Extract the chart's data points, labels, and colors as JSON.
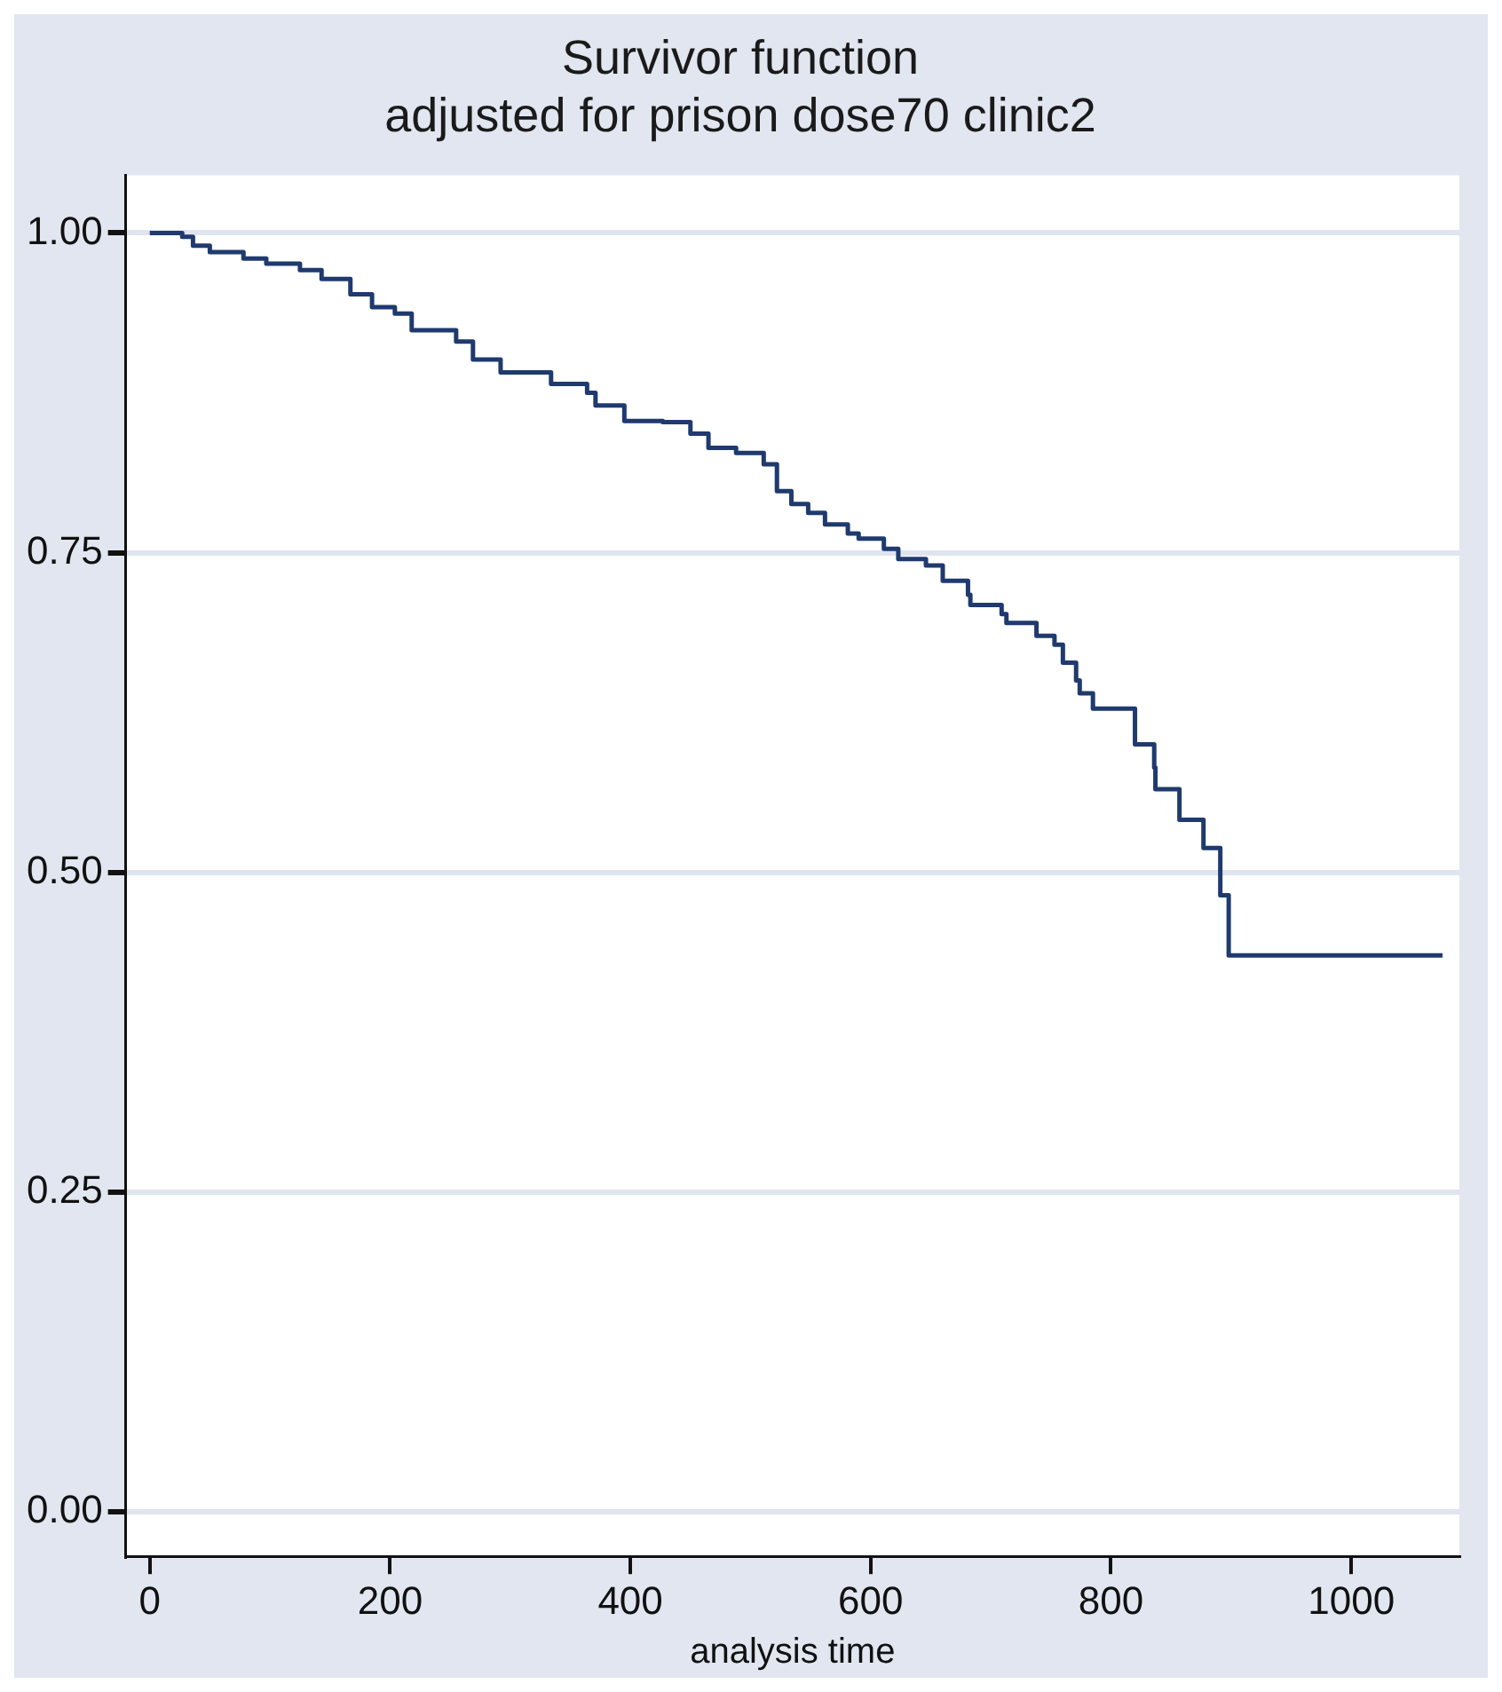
{
  "chart_data": {
    "type": "step",
    "title": "Survivor function",
    "subtitle": "adjusted for prison dose70 clinic2",
    "xlabel": "analysis time",
    "x": [
      0,
      15,
      27,
      36,
      50,
      78,
      97,
      125,
      143,
      167,
      185,
      204,
      218,
      255,
      269,
      292,
      334,
      364,
      371,
      395,
      427,
      450,
      465,
      488,
      511,
      522,
      534,
      548,
      562,
      581,
      590,
      611,
      623,
      646,
      660,
      681,
      683,
      709,
      713,
      738,
      753,
      760,
      771,
      774,
      785,
      820,
      836,
      837,
      857,
      877,
      891,
      898,
      1076
    ],
    "series": [
      {
        "color": "#1f3a6e",
        "values": [
          1,
          1,
          0.997,
          0.99,
          0.985,
          0.98,
          0.976,
          0.971,
          0.964,
          0.952,
          0.942,
          0.937,
          0.924,
          0.915,
          0.901,
          0.891,
          0.882,
          0.875,
          0.865,
          0.853,
          0.852,
          0.843,
          0.832,
          0.828,
          0.819,
          0.798,
          0.788,
          0.781,
          0.772,
          0.765,
          0.761,
          0.753,
          0.745,
          0.74,
          0.728,
          0.717,
          0.709,
          0.702,
          0.695,
          0.685,
          0.678,
          0.664,
          0.65,
          0.64,
          0.628,
          0.6,
          0.582,
          0.565,
          0.541,
          0.519,
          0.482,
          0.435,
          0.435
        ]
      }
    ],
    "xlim": [
      -20,
      1090
    ],
    "ylim": [
      -0.035,
      1.045
    ],
    "xticks": [
      0,
      200,
      400,
      600,
      800,
      1000
    ],
    "yticks": [
      {
        "value": 0,
        "label": "0.00"
      },
      {
        "value": 0.25,
        "label": "0.25"
      },
      {
        "value": 0.5,
        "label": "0.50"
      },
      {
        "value": 0.75,
        "label": "0.75"
      },
      {
        "value": 1,
        "label": "1.00"
      }
    ],
    "grid": "y",
    "legend": false
  }
}
